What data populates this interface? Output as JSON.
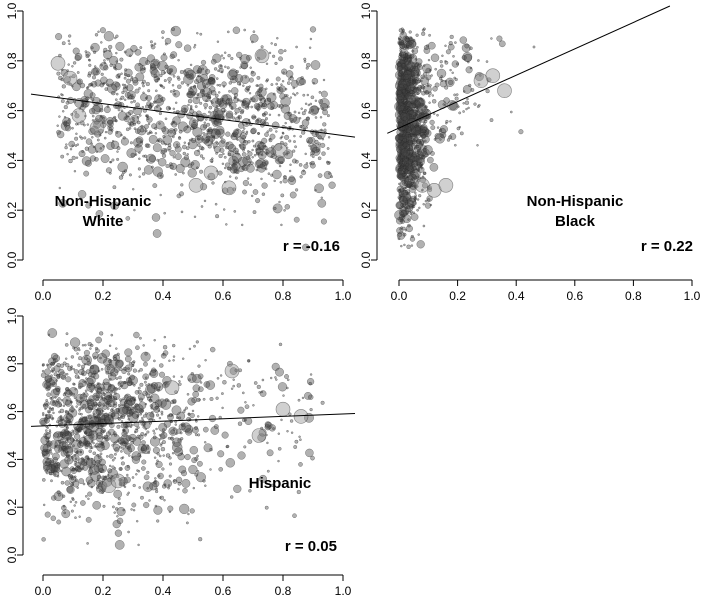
{
  "chart_data": [
    {
      "type": "scatter",
      "id": "nhw",
      "group_label_lines": [
        "Non-Hispanic",
        "White"
      ],
      "r_label": "r = -0.16",
      "xlim": [
        0,
        1.0
      ],
      "ylim": [
        0,
        1.0
      ],
      "xticks": [
        "0.0",
        "0.2",
        "0.4",
        "0.6",
        "0.8",
        "1.0"
      ],
      "yticks": [
        "0.0",
        "0.2",
        "0.4",
        "0.6",
        "0.8",
        "1.0"
      ],
      "fit_line": {
        "intercept": 0.66,
        "slope": -0.16
      },
      "point_cloud": {
        "x_center": 0.65,
        "x_spread": 0.25,
        "y_center": 0.55,
        "y_spread": 0.17,
        "n": 1400
      },
      "large_points": [
        [
          0.05,
          0.79
        ],
        [
          0.09,
          0.73
        ],
        [
          0.12,
          0.58
        ],
        [
          0.18,
          0.53
        ],
        [
          0.51,
          0.3
        ],
        [
          0.56,
          0.35
        ],
        [
          0.62,
          0.29
        ],
        [
          0.73,
          0.82
        ],
        [
          0.79,
          0.44
        ]
      ]
    },
    {
      "type": "scatter",
      "id": "nhb",
      "group_label_lines": [
        "Non-Hispanic",
        "Black"
      ],
      "r_label": "r = 0.22",
      "xlim": [
        0,
        1.0
      ],
      "ylim": [
        0,
        1.0
      ],
      "xticks": [
        "0.0",
        "0.2",
        "0.4",
        "0.6",
        "0.8",
        "1.0"
      ],
      "yticks": [
        "0.0",
        "0.2",
        "0.4",
        "0.6",
        "0.8",
        "1.0"
      ],
      "fit_line": {
        "intercept": 0.53,
        "slope": 0.53
      },
      "point_cloud": {
        "x_center": 0.02,
        "x_spread": 0.04,
        "y_center": 0.55,
        "y_spread": 0.2,
        "n": 1300
      },
      "large_points": [
        [
          0.08,
          0.3
        ],
        [
          0.12,
          0.28
        ],
        [
          0.16,
          0.3
        ],
        [
          0.28,
          0.72
        ],
        [
          0.32,
          0.74
        ],
        [
          0.36,
          0.68
        ]
      ]
    },
    {
      "type": "scatter",
      "id": "hisp",
      "group_label_lines": [
        "Hispanic"
      ],
      "r_label": "r = 0.05",
      "xlim": [
        0,
        1.0
      ],
      "ylim": [
        0,
        1.0
      ],
      "xticks": [
        "0.0",
        "0.2",
        "0.4",
        "0.6",
        "0.8",
        "1.0"
      ],
      "yticks": [
        "0.0",
        "0.2",
        "0.4",
        "0.6",
        "0.8",
        "1.0"
      ],
      "fit_line": {
        "intercept": 0.54,
        "slope": 0.05
      },
      "point_cloud": {
        "x_center": 0.18,
        "x_spread": 0.17,
        "y_center": 0.57,
        "y_spread": 0.19,
        "n": 1300
      },
      "large_points": [
        [
          0.22,
          0.29
        ],
        [
          0.25,
          0.31
        ],
        [
          0.43,
          0.7
        ],
        [
          0.63,
          0.77
        ],
        [
          0.72,
          0.5
        ],
        [
          0.8,
          0.61
        ],
        [
          0.86,
          0.58
        ]
      ]
    }
  ]
}
